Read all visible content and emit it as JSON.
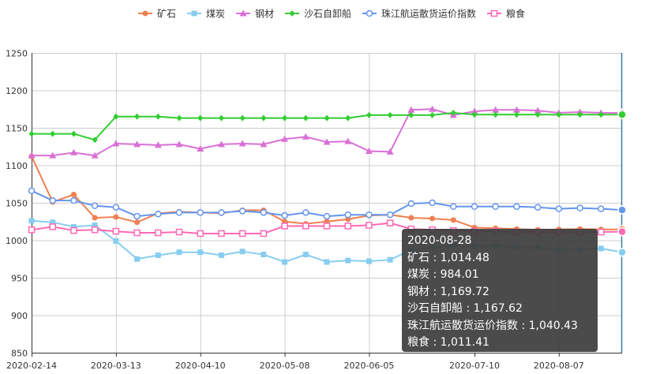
{
  "chart_data": {
    "type": "line",
    "x": [
      "2020-02-14",
      "2020-02-21",
      "2020-02-28",
      "2020-03-06",
      "2020-03-13",
      "2020-03-20",
      "2020-03-27",
      "2020-04-03",
      "2020-04-10",
      "2020-04-17",
      "2020-04-24",
      "2020-05-01",
      "2020-05-08",
      "2020-05-15",
      "2020-05-22",
      "2020-05-29",
      "2020-06-05",
      "2020-06-12",
      "2020-06-19",
      "2020-06-26",
      "2020-07-03",
      "2020-07-10",
      "2020-07-17",
      "2020-07-24",
      "2020-07-31",
      "2020-08-07",
      "2020-08-14",
      "2020-08-21",
      "2020-08-28"
    ],
    "x_tick_labels": [
      "2020-02-14",
      "2020-03-13",
      "2020-04-10",
      "2020-05-08",
      "2020-06-05",
      "2020-07-10",
      "2020-08-07"
    ],
    "y_ticks": [
      850,
      900,
      950,
      1000,
      1050,
      1100,
      1150,
      1200,
      1250
    ],
    "ylim": [
      850,
      1250
    ],
    "grid": true,
    "legend_position": "top-center",
    "series": [
      {
        "name": "矿石",
        "color": "#f08050",
        "marker": "circle",
        "values": [
          1112,
          1051,
          1061,
          1030,
          1031,
          1024,
          1036,
          1038,
          1037,
          1036,
          1040,
          1040,
          1025,
          1022,
          1025,
          1028,
          1033,
          1034,
          1030,
          1029,
          1027,
          1017,
          1016,
          1015,
          1014,
          1014.5,
          1015,
          1014.5,
          1014.48
        ]
      },
      {
        "name": "煤炭",
        "color": "#87cdf0",
        "marker": "square",
        "values": [
          1026,
          1024,
          1018,
          1020,
          999,
          975,
          980,
          984,
          984,
          980,
          985,
          981,
          971,
          981,
          971,
          973,
          972,
          974,
          987,
          990,
          993,
          992,
          992,
          991,
          990,
          987,
          988,
          989,
          984.01
        ]
      },
      {
        "name": "钢材",
        "color": "#da70d6",
        "marker": "triangle",
        "values": [
          1113,
          1113,
          1117,
          1113,
          1129,
          1128,
          1127,
          1128,
          1122,
          1128,
          1129,
          1128,
          1135,
          1138,
          1131,
          1132,
          1119,
          1118,
          1174,
          1175,
          1167,
          1172,
          1174,
          1174,
          1173,
          1170,
          1171,
          1170,
          1169.72
        ]
      },
      {
        "name": "沙石自卸船",
        "color": "#32cd32",
        "marker": "diamond",
        "values": [
          1142,
          1142,
          1142,
          1134,
          1165,
          1165,
          1165,
          1163,
          1163,
          1163,
          1163,
          1163,
          1163,
          1163,
          1163,
          1163,
          1167,
          1167,
          1167,
          1167,
          1170,
          1167.6,
          1167.6,
          1167.6,
          1167.6,
          1167.6,
          1167.6,
          1167.6,
          1167.62
        ]
      },
      {
        "name": "珠江航运散货运价指数",
        "color": "#6495ed",
        "marker": "circle-open",
        "values": [
          1066,
          1053,
          1053,
          1046,
          1044,
          1032,
          1035,
          1037,
          1037,
          1037,
          1039,
          1037,
          1033,
          1037,
          1032,
          1034,
          1034,
          1034,
          1049,
          1050,
          1045,
          1045,
          1045,
          1045,
          1044,
          1042,
          1043,
          1042,
          1040.43
        ]
      },
      {
        "name": "粮食",
        "color": "#ff69b4",
        "marker": "square-open",
        "values": [
          1014,
          1018,
          1013,
          1014,
          1012,
          1010,
          1010,
          1011,
          1009,
          1009,
          1009,
          1009,
          1019,
          1019,
          1019,
          1019,
          1020,
          1023,
          1015,
          1014,
          1013,
          1012,
          1012,
          1011,
          1011,
          1011,
          1011,
          1011,
          1011.41
        ]
      }
    ]
  },
  "tooltip": {
    "title": "2020-08-28",
    "rows": [
      "矿石 : 1,014.48",
      "煤炭 : 984.01",
      "钢材 : 1,169.72",
      "沙石自卸船 : 1,167.62",
      "珠江航运散货运价指数 : 1,040.43",
      "粮食 : 1,011.41"
    ]
  }
}
